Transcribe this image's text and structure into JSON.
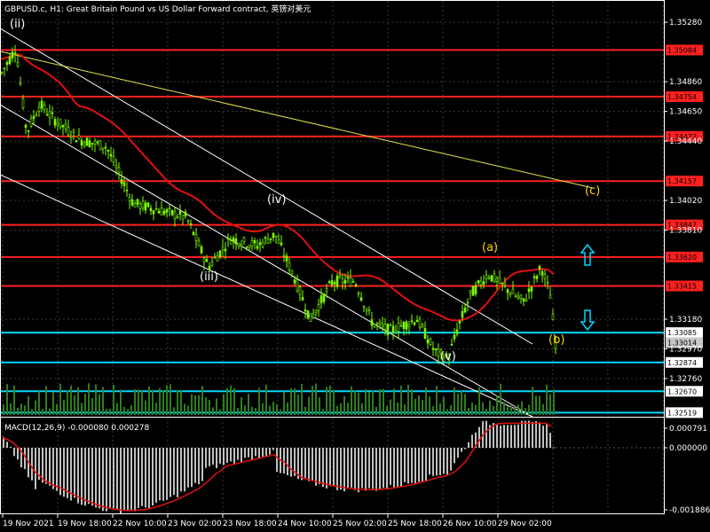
{
  "window": {
    "title": "GBPUSD.c, H1:  Great Britain Pound vs US Dollar Forward contract, 英镑对美元"
  },
  "colors": {
    "background": "#000000",
    "grid": "#3a3a3a",
    "candle": "#7cfc00",
    "ma": "#e01010",
    "resistance": "#ff2020",
    "support": "#00d8ff",
    "channel": "#ffffff",
    "trendline": "#e6e64a",
    "macd_hist": "#c0c0c0",
    "macd_signal": "#e01010",
    "wave_label": "#ffffff",
    "wave_label_alt": "#ffd700"
  },
  "price_axis": {
    "ticks": [
      "1.35280",
      "1.34860",
      "1.34650",
      "1.34440",
      "1.34020",
      "1.33810",
      "1.33180",
      "1.32970",
      "1.32760"
    ]
  },
  "time_axis": {
    "labels": [
      "19 Nov 2021",
      "19 Nov 18:00",
      "22 Nov 10:00",
      "23 Nov 02:00",
      "23 Nov 18:00",
      "24 Nov 10:00",
      "25 Nov 02:00",
      "25 Nov 18:00",
      "26 Nov 10:00",
      "29 Nov 02:00"
    ]
  },
  "price_levels": [
    {
      "value": "1.35084",
      "kind": "resistance"
    },
    {
      "value": "1.34754",
      "kind": "resistance"
    },
    {
      "value": "1.34473",
      "kind": "resistance"
    },
    {
      "value": "1.34157",
      "kind": "resistance"
    },
    {
      "value": "1.33847",
      "kind": "resistance"
    },
    {
      "value": "1.33620",
      "kind": "resistance"
    },
    {
      "value": "1.33415",
      "kind": "resistance"
    },
    {
      "value": "1.33085",
      "kind": "support"
    },
    {
      "value": "1.32874",
      "kind": "support"
    },
    {
      "value": "1.32670",
      "kind": "support"
    },
    {
      "value": "1.32519",
      "kind": "support"
    }
  ],
  "current_price": {
    "value": "1.33014"
  },
  "wave_labels": [
    {
      "text": "(ii)",
      "color": "white"
    },
    {
      "text": "(iii)",
      "color": "white"
    },
    {
      "text": "(iv)",
      "color": "white"
    },
    {
      "text": "(v)",
      "color": "white"
    },
    {
      "text": "(a)",
      "color": "gold"
    },
    {
      "text": "(b)",
      "color": "gold"
    },
    {
      "text": "(c)",
      "color": "gold"
    }
  ],
  "arrows": [
    {
      "name": "up-arrow-icon",
      "direction": "up"
    },
    {
      "name": "down-arrow-icon",
      "direction": "down"
    }
  ],
  "macd": {
    "title": "MACD(12,26,9) -0.000080 0.000278",
    "ticks": [
      "0.000791",
      "0.000000",
      "-0.001886"
    ]
  },
  "chart_data": {
    "type": "candlestick",
    "symbol": "GBPUSD.c",
    "timeframe": "H1",
    "ylim": [
      1.3249,
      1.3535
    ],
    "approx_close_path": [
      {
        "x": "19 Nov 2021",
        "y": 1.349
      },
      {
        "x": "19 Nov 18:00",
        "y": 1.3462
      },
      {
        "x": "22 Nov 10:00",
        "y": 1.344
      },
      {
        "x": "23 Nov 02:00",
        "y": 1.3375
      },
      {
        "x": "23 Nov 18:00",
        "y": 1.3382
      },
      {
        "x": "24 Nov 10:00",
        "y": 1.333
      },
      {
        "x": "25 Nov 02:00",
        "y": 1.333
      },
      {
        "x": "25 Nov 18:00",
        "y": 1.33
      },
      {
        "x": "26 Nov 10:00",
        "y": 1.3345
      },
      {
        "x": "29 Nov 02:00",
        "y": 1.334
      },
      {
        "x": "end",
        "y": 1.3301
      }
    ]
  }
}
